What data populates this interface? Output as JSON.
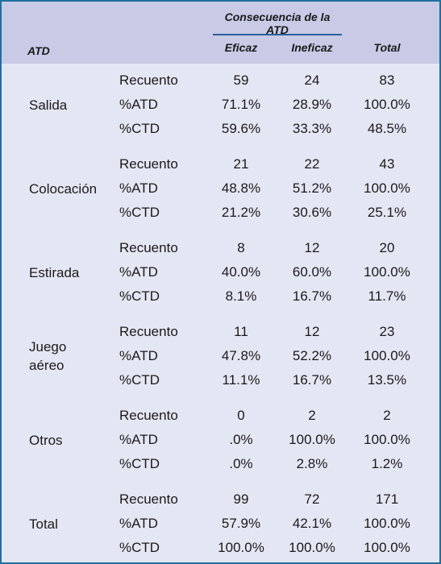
{
  "header": {
    "group_title": "Consecuencia de la ATD",
    "row_label": "ATD",
    "col1": "Eficaz",
    "col2": "Ineficaz",
    "col3": "Total"
  },
  "groups": [
    {
      "name": [
        "Salida"
      ],
      "rows": [
        {
          "label": "Recuento",
          "values": [
            "59",
            "24",
            "83"
          ]
        },
        {
          "label": "%ATD",
          "values": [
            "71.1%",
            "28.9%",
            "100.0%"
          ]
        },
        {
          "label": "%CTD",
          "values": [
            "59.6%",
            "33.3%",
            "48.5%"
          ]
        }
      ]
    },
    {
      "name": [
        "Colocación"
      ],
      "rows": [
        {
          "label": "Recuento",
          "values": [
            "21",
            "22",
            "43"
          ]
        },
        {
          "label": "%ATD",
          "values": [
            "48.8%",
            "51.2%",
            "100.0%"
          ]
        },
        {
          "label": "%CTD",
          "values": [
            "21.2%",
            "30.6%",
            "25.1%"
          ]
        }
      ]
    },
    {
      "name": [
        "Estirada"
      ],
      "rows": [
        {
          "label": "Recuento",
          "values": [
            "8",
            "12",
            "20"
          ]
        },
        {
          "label": "%ATD",
          "values": [
            "40.0%",
            "60.0%",
            "100.0%"
          ]
        },
        {
          "label": "%CTD",
          "values": [
            "8.1%",
            "16.7%",
            "11.7%"
          ]
        }
      ]
    },
    {
      "name": [
        "Juego",
        "aéreo"
      ],
      "rows": [
        {
          "label": "Recuento",
          "values": [
            "11",
            "12",
            "23"
          ]
        },
        {
          "label": "%ATD",
          "values": [
            "47.8%",
            "52.2%",
            "100.0%"
          ]
        },
        {
          "label": "%CTD",
          "values": [
            "11.1%",
            "16.7%",
            "13.5%"
          ]
        }
      ]
    },
    {
      "name": [
        "Otros"
      ],
      "rows": [
        {
          "label": "Recuento",
          "values": [
            "0",
            "2",
            "2"
          ]
        },
        {
          "label": "%ATD",
          "values": [
            ".0%",
            "100.0%",
            "100.0%"
          ]
        },
        {
          "label": "%CTD",
          "values": [
            ".0%",
            "2.8%",
            "1.2%"
          ]
        }
      ]
    },
    {
      "name": [
        "Total"
      ],
      "rows": [
        {
          "label": "Recuento",
          "values": [
            "99",
            "72",
            "171"
          ]
        },
        {
          "label": "%ATD",
          "values": [
            "57.9%",
            "42.1%",
            "100.0%"
          ]
        },
        {
          "label": "%CTD",
          "values": [
            "100.0%",
            "100.0%",
            "100.0%"
          ]
        }
      ]
    }
  ]
}
